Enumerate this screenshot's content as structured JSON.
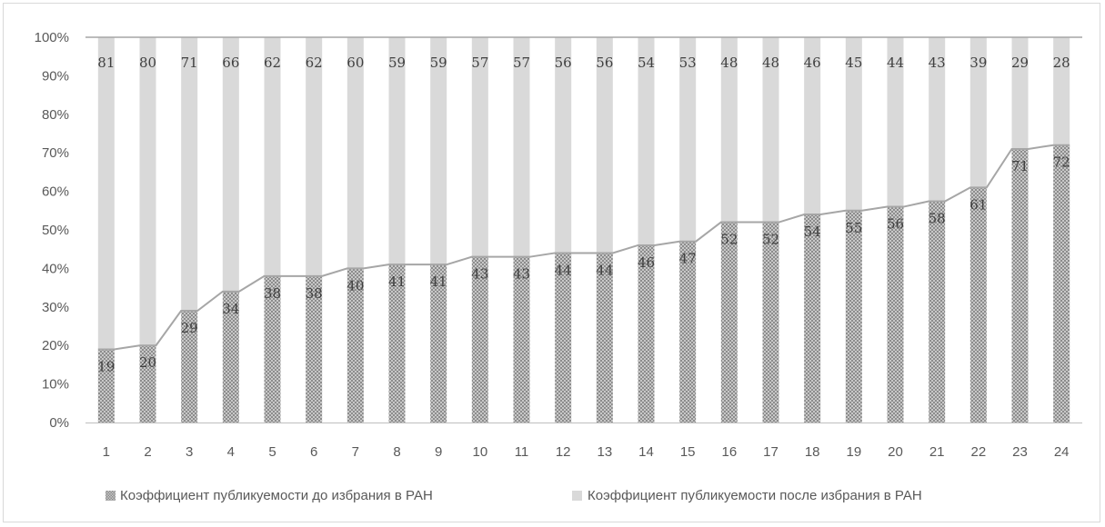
{
  "chart_data": {
    "type": "bar",
    "stacked": true,
    "percent_axis": true,
    "categories": [
      "1",
      "2",
      "3",
      "4",
      "5",
      "6",
      "7",
      "8",
      "9",
      "10",
      "11",
      "12",
      "13",
      "14",
      "15",
      "16",
      "17",
      "18",
      "19",
      "20",
      "21",
      "22",
      "23",
      "24"
    ],
    "series": [
      {
        "name": "Коэффициент публикуемости до избрания в РАН",
        "values": [
          19,
          20,
          29,
          34,
          38,
          38,
          40,
          41,
          41,
          43,
          43,
          44,
          44,
          46,
          47,
          52,
          52,
          54,
          55,
          56,
          58,
          61,
          71,
          72
        ],
        "color": "#a6a6a6",
        "pattern": "crosshatch"
      },
      {
        "name": "Коэффициент публикуемости после избрания в РАН",
        "values": [
          81,
          80,
          71,
          66,
          62,
          62,
          60,
          59,
          59,
          57,
          57,
          56,
          56,
          54,
          53,
          48,
          48,
          46,
          45,
          44,
          43,
          39,
          29,
          28
        ],
        "color": "#d9d9d9"
      }
    ],
    "y_ticks": [
      "0%",
      "10%",
      "20%",
      "30%",
      "40%",
      "50%",
      "60%",
      "70%",
      "80%",
      "90%",
      "100%"
    ],
    "ylim": [
      0,
      100
    ],
    "grid": false,
    "legend_position": "bottom",
    "title": "",
    "xlabel": "",
    "ylabel": ""
  },
  "colors": {
    "line": "#a6a6a6",
    "axis": "#bfbfbf",
    "top_line": "#a6a6a6"
  }
}
